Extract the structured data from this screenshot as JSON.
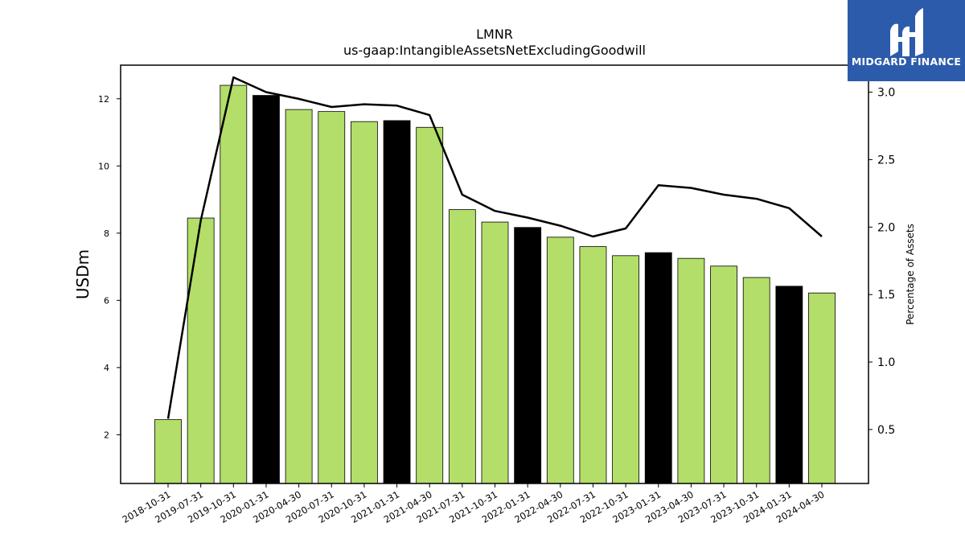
{
  "chart_data": {
    "type": "bar",
    "title": "LMNR",
    "subtitle": "us-gaap:IntangibleAssetsNetExcludingGoodwill",
    "ylabel": "USDm",
    "y2label": "Percentage of Assets",
    "ylim": [
      0.55,
      13.0
    ],
    "y2lim": [
      0.1,
      3.2
    ],
    "yticks": [
      2,
      4,
      6,
      8,
      10,
      12
    ],
    "y2ticks": [
      0.5,
      1.0,
      1.5,
      2.0,
      2.5,
      3.0
    ],
    "categories": [
      "2018-10-31",
      "2019-07-31",
      "2019-10-31",
      "2020-01-31",
      "2020-04-30",
      "2020-07-31",
      "2020-10-31",
      "2021-01-31",
      "2021-04-30",
      "2021-07-31",
      "2021-10-31",
      "2022-01-31",
      "2022-04-30",
      "2022-07-31",
      "2022-10-31",
      "2023-01-31",
      "2023-04-30",
      "2023-07-31",
      "2023-10-31",
      "2024-01-31",
      "2024-04-30"
    ],
    "series": [
      {
        "type": "bar",
        "axis": "left",
        "values": [
          2.45,
          8.45,
          12.4,
          12.1,
          11.68,
          11.62,
          11.32,
          11.35,
          11.15,
          8.7,
          8.33,
          8.17,
          7.88,
          7.6,
          7.33,
          7.42,
          7.25,
          7.02,
          6.68,
          6.42,
          6.22
        ],
        "colors": [
          "#b3de69",
          "#b3de69",
          "#b3de69",
          "#000000",
          "#b3de69",
          "#b3de69",
          "#b3de69",
          "#000000",
          "#b3de69",
          "#b3de69",
          "#b3de69",
          "#000000",
          "#b3de69",
          "#b3de69",
          "#b3de69",
          "#000000",
          "#b3de69",
          "#b3de69",
          "#b3de69",
          "#000000",
          "#b3de69"
        ]
      },
      {
        "type": "line",
        "axis": "right",
        "color": "#000000",
        "values": [
          0.58,
          2.05,
          3.11,
          3.0,
          2.95,
          2.89,
          2.91,
          2.9,
          2.83,
          2.24,
          2.12,
          2.07,
          2.01,
          1.93,
          1.99,
          2.31,
          2.29,
          2.24,
          2.21,
          2.14,
          1.93
        ]
      }
    ],
    "grid": false,
    "legend": "none"
  },
  "logo": {
    "text": "MIDGARD FINANCE",
    "background": "#2d5bab"
  }
}
